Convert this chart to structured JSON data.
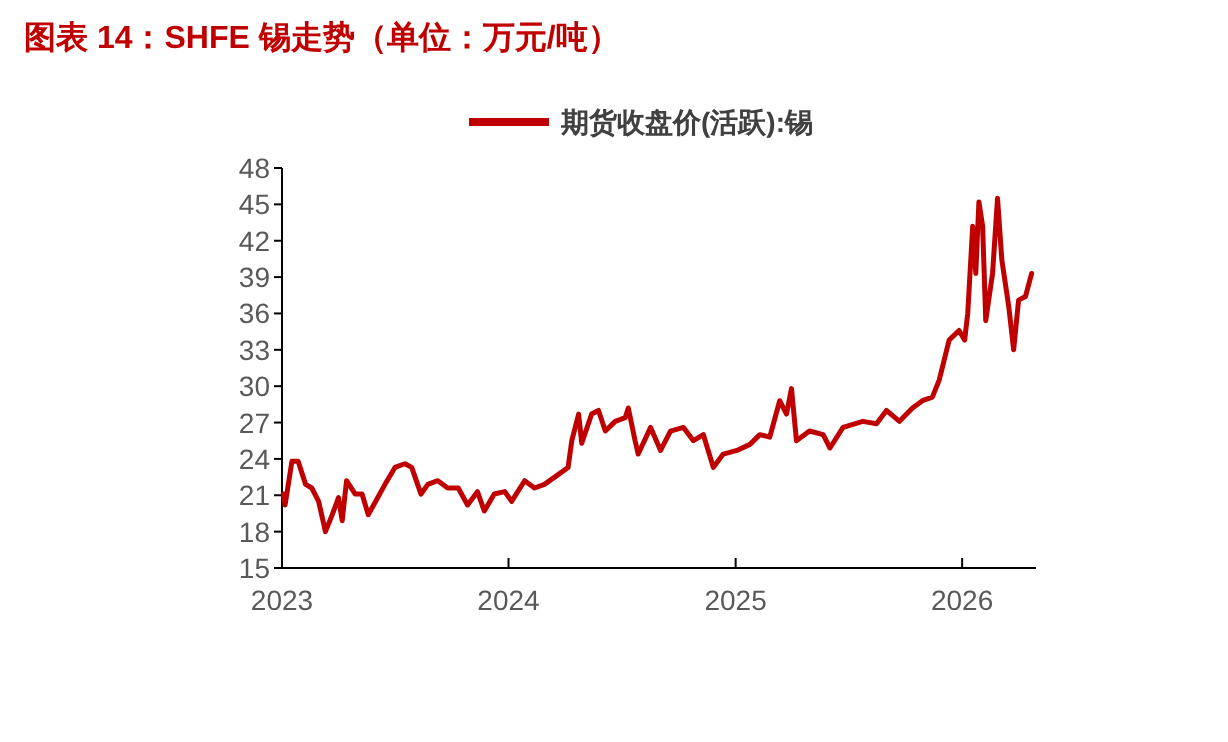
{
  "chart_data": {
    "type": "line",
    "title": "图表 14：SHFE 锡走势（单位：万元/吨）",
    "legend": "top",
    "xlim": [
      "2023-01-01",
      "2026-04-30"
    ],
    "xticks": [
      "2023",
      "2024",
      "2025",
      "2026"
    ],
    "ylim": [
      15,
      48
    ],
    "yticks": [
      15,
      18,
      21,
      24,
      27,
      30,
      33,
      36,
      39,
      42,
      45,
      48
    ],
    "grid": false,
    "series": [
      {
        "name": "期货收盘价(活跃):锡",
        "color": "#c00000",
        "x": [
          "2023-01-03",
          "2023-01-06",
          "2023-01-17",
          "2023-01-27",
          "2023-02-08",
          "2023-02-18",
          "2023-03-01",
          "2023-03-12",
          "2023-03-23",
          "2023-04-02",
          "2023-04-08",
          "2023-04-15",
          "2023-04-29",
          "2023-05-10",
          "2023-05-20",
          "2023-06-01",
          "2023-06-16",
          "2023-07-02",
          "2023-07-18",
          "2023-07-29",
          "2023-08-13",
          "2023-08-24",
          "2023-09-09",
          "2023-09-25",
          "2023-10-12",
          "2023-10-27",
          "2023-11-12",
          "2023-11-23",
          "2023-12-09",
          "2023-12-26",
          "2024-01-06",
          "2024-01-27",
          "2024-02-12",
          "2024-02-28",
          "2024-03-21",
          "2024-04-06",
          "2024-04-12",
          "2024-04-23",
          "2024-04-28",
          "2024-05-14",
          "2024-05-25",
          "2024-06-05",
          "2024-06-21",
          "2024-07-07",
          "2024-07-12",
          "2024-07-23",
          "2024-07-28",
          "2024-08-17",
          "2024-09-02",
          "2024-09-18",
          "2024-10-09",
          "2024-10-25",
          "2024-11-10",
          "2024-11-26",
          "2024-12-12",
          "2025-01-03",
          "2025-01-24",
          "2025-02-09",
          "2025-02-25",
          "2025-03-13",
          "2025-03-24",
          "2025-04-01",
          "2025-04-09",
          "2025-04-30",
          "2025-05-22",
          "2025-06-02",
          "2025-06-23",
          "2025-07-25",
          "2025-08-16",
          "2025-09-01",
          "2025-09-22",
          "2025-10-13",
          "2025-10-29",
          "2025-11-14",
          "2025-11-25",
          "2025-12-11",
          "2025-12-27",
          "2026-01-05",
          "2026-01-10",
          "2026-01-18",
          "2026-01-23",
          "2026-01-28",
          "2026-02-03",
          "2026-02-08",
          "2026-02-19",
          "2026-02-27",
          "2026-03-06",
          "2026-03-17",
          "2026-03-25",
          "2026-04-02",
          "2026-04-13",
          "2026-04-23"
        ],
        "values": [
          21.1,
          20.2,
          23.8,
          23.8,
          21.9,
          21.6,
          20.5,
          18.0,
          19.4,
          20.8,
          18.9,
          22.2,
          21.1,
          21.1,
          19.4,
          20.5,
          21.9,
          23.3,
          23.6,
          23.3,
          21.1,
          21.9,
          22.2,
          21.6,
          21.6,
          20.2,
          21.3,
          19.7,
          21.1,
          21.3,
          20.5,
          22.2,
          21.6,
          21.9,
          22.7,
          23.3,
          25.5,
          27.7,
          25.3,
          27.7,
          28.0,
          26.3,
          27.1,
          27.4,
          28.2,
          25.5,
          24.4,
          26.6,
          24.7,
          26.3,
          26.6,
          25.5,
          26.0,
          23.3,
          24.4,
          24.7,
          25.2,
          26.0,
          25.8,
          28.8,
          27.7,
          29.8,
          25.5,
          26.3,
          26.0,
          24.9,
          26.6,
          27.1,
          26.9,
          28.0,
          27.1,
          28.2,
          28.8,
          29.1,
          30.5,
          33.8,
          34.6,
          33.8,
          36.0,
          43.2,
          39.3,
          45.2,
          43.2,
          35.4,
          39.3,
          45.5,
          40.4,
          36.6,
          33.0,
          37.1,
          37.4,
          39.3
        ]
      }
    ]
  }
}
